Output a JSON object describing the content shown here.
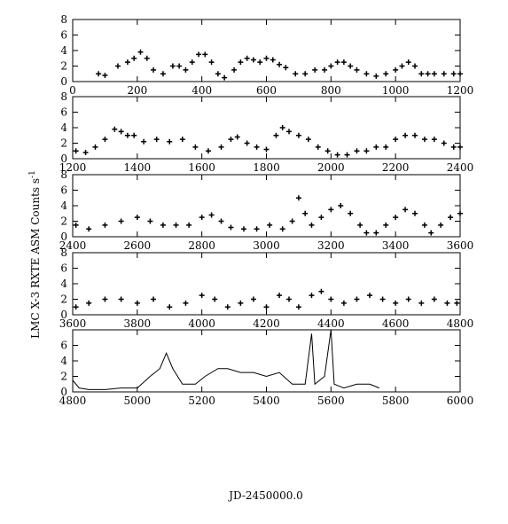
{
  "figure": {
    "y_label": "LMC X-3 RXTE ASM Counts s",
    "y_label_sup": "-1",
    "x_label": "JD-2450000.0"
  },
  "chart_data": [
    {
      "type": "errorbar",
      "xlim": [
        0,
        1200
      ],
      "xticks": [
        0,
        200,
        400,
        600,
        800,
        1000,
        1200
      ],
      "ylim": [
        0,
        8
      ],
      "yticks": [
        0,
        2,
        4,
        6,
        8
      ],
      "color": "#000000",
      "x": [
        80,
        100,
        140,
        170,
        190,
        210,
        230,
        250,
        280,
        310,
        330,
        350,
        370,
        390,
        410,
        430,
        450,
        470,
        500,
        520,
        540,
        560,
        580,
        600,
        620,
        640,
        660,
        690,
        720,
        750,
        780,
        800,
        820,
        840,
        860,
        880,
        910,
        940,
        970,
        1000,
        1020,
        1040,
        1060,
        1080,
        1100,
        1120,
        1150,
        1180,
        1200
      ],
      "values": [
        1,
        0.8,
        2,
        2.5,
        3,
        3.8,
        3,
        1.5,
        1,
        2,
        2,
        1.5,
        2.5,
        3.5,
        3.5,
        2.5,
        1,
        0.5,
        1.5,
        2.5,
        3,
        2.8,
        2.5,
        3,
        2.8,
        2.2,
        1.8,
        1,
        1,
        1.5,
        1.5,
        2,
        2.5,
        2.5,
        2,
        1.5,
        1,
        0.7,
        1,
        1.5,
        2,
        2.5,
        2,
        1,
        1,
        1,
        1,
        1,
        1
      ]
    },
    {
      "type": "errorbar",
      "xlim": [
        1200,
        2400
      ],
      "xticks": [
        1200,
        1400,
        1600,
        1800,
        2000,
        2200,
        2400
      ],
      "ylim": [
        0,
        8
      ],
      "yticks": [
        0,
        2,
        4,
        6,
        8
      ],
      "color": "#000000",
      "x": [
        1210,
        1240,
        1270,
        1300,
        1330,
        1350,
        1370,
        1390,
        1420,
        1460,
        1500,
        1540,
        1580,
        1620,
        1660,
        1690,
        1710,
        1740,
        1770,
        1800,
        1830,
        1850,
        1870,
        1900,
        1930,
        1960,
        1990,
        2020,
        2050,
        2080,
        2110,
        2140,
        2170,
        2200,
        2230,
        2260,
        2290,
        2320,
        2350,
        2380,
        2400
      ],
      "values": [
        1,
        0.8,
        1.5,
        2.5,
        3.8,
        3.5,
        3,
        3,
        2.2,
        2.5,
        2.2,
        2.5,
        1.5,
        1,
        1.5,
        2.5,
        2.8,
        2,
        1.5,
        1.2,
        3,
        4,
        3.5,
        3,
        2.5,
        1.5,
        1,
        0.5,
        0.5,
        1,
        1,
        1.5,
        1.5,
        2.5,
        3,
        3,
        2.5,
        2.5,
        2,
        1.5,
        1.5
      ]
    },
    {
      "type": "errorbar",
      "xlim": [
        2400,
        3600
      ],
      "xticks": [
        2400,
        2600,
        2800,
        3000,
        3200,
        3400,
        3600
      ],
      "ylim": [
        0,
        8
      ],
      "yticks": [
        0,
        2,
        4,
        6,
        8
      ],
      "color": "#000000",
      "x": [
        2410,
        2450,
        2500,
        2550,
        2600,
        2640,
        2680,
        2720,
        2760,
        2800,
        2830,
        2860,
        2890,
        2930,
        2970,
        3010,
        3050,
        3080,
        3100,
        3120,
        3140,
        3170,
        3200,
        3230,
        3260,
        3290,
        3310,
        3340,
        3370,
        3400,
        3430,
        3460,
        3490,
        3510,
        3540,
        3570,
        3600
      ],
      "values": [
        1.5,
        1,
        1.5,
        2,
        2.5,
        2,
        1.5,
        1.5,
        1.5,
        2.5,
        2.8,
        2,
        1.2,
        1,
        1,
        1.5,
        1,
        2,
        5,
        3,
        1.5,
        2.5,
        3.5,
        4,
        3,
        1.5,
        0.5,
        0.5,
        1.5,
        2.5,
        3.5,
        3,
        1.5,
        0.5,
        1.5,
        2.5,
        3
      ]
    },
    {
      "type": "errorbar",
      "xlim": [
        3600,
        4800
      ],
      "xticks": [
        3600,
        3800,
        4000,
        4200,
        4400,
        4600,
        4800
      ],
      "ylim": [
        0,
        8
      ],
      "yticks": [
        0,
        2,
        4,
        6,
        8
      ],
      "color": "#000000",
      "x": [
        3610,
        3650,
        3700,
        3750,
        3800,
        3850,
        3900,
        3950,
        4000,
        4040,
        4080,
        4120,
        4160,
        4200,
        4240,
        4270,
        4300,
        4340,
        4370,
        4400,
        4440,
        4480,
        4520,
        4560,
        4600,
        4640,
        4680,
        4720,
        4760,
        4790
      ],
      "values": [
        1,
        1.5,
        2,
        2,
        1.5,
        2,
        1,
        1.5,
        2.5,
        2,
        1,
        1.5,
        2,
        1,
        2.5,
        2,
        1,
        2.5,
        3,
        2,
        1.5,
        2,
        2.5,
        2,
        1.5,
        2,
        1.5,
        2,
        1.5,
        1.5
      ]
    },
    {
      "type": "line",
      "xlim": [
        4800,
        6000
      ],
      "xticks": [
        4800,
        5000,
        5200,
        5400,
        5600,
        5800,
        6000
      ],
      "ylim": [
        0,
        8
      ],
      "yticks": [
        0,
        2,
        4,
        6
      ],
      "color": "#000000",
      "x": [
        4800,
        4820,
        4850,
        4900,
        4950,
        5000,
        5040,
        5070,
        5090,
        5110,
        5140,
        5180,
        5210,
        5250,
        5280,
        5320,
        5360,
        5400,
        5440,
        5480,
        5520,
        5540,
        5550,
        5580,
        5600,
        5610,
        5640,
        5680,
        5720,
        5750
      ],
      "values": [
        1.5,
        0.5,
        0.3,
        0.3,
        0.5,
        0.5,
        2,
        3,
        5,
        3,
        1,
        1,
        2,
        3,
        3,
        2.5,
        2.5,
        2,
        2.5,
        1,
        1,
        7.5,
        1,
        2,
        8,
        1,
        0.5,
        1,
        1,
        0.5
      ]
    }
  ]
}
